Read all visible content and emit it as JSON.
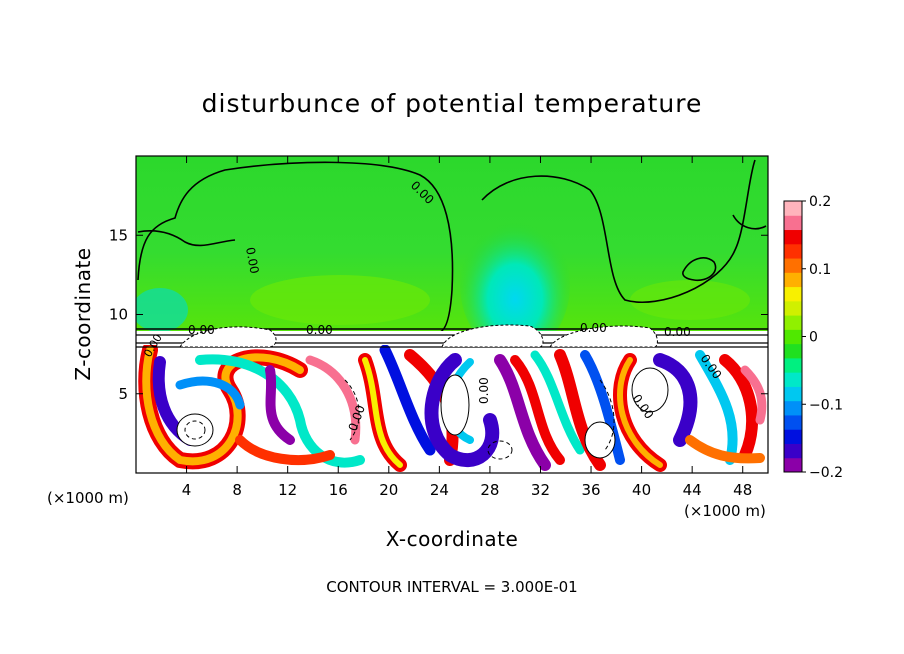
{
  "chart_data": {
    "type": "heatmap",
    "title": "disturbunce of potential temperature",
    "xlabel": "X-coordinate",
    "ylabel": "Z-coordinate",
    "x_unit_left": "(×1000 m)",
    "x_unit_right": "(×1000 m)",
    "xlim": [
      0,
      50
    ],
    "ylim": [
      0,
      20
    ],
    "x_ticks": [
      4,
      8,
      12,
      16,
      20,
      24,
      28,
      32,
      36,
      40,
      44,
      48
    ],
    "y_ticks": [
      5,
      10,
      15
    ],
    "x_tick_labels": [
      "4",
      "8",
      "12",
      "16",
      "20",
      "24",
      "28",
      "32",
      "36",
      "40",
      "44",
      "48"
    ],
    "y_tick_labels": [
      "5",
      "10",
      "15"
    ],
    "colorbar": {
      "range": [
        -0.2,
        0.2
      ],
      "tick_labels": [
        "0.2",
        "0.1",
        "0",
        "−0.1",
        "−0.2"
      ],
      "tick_values": [
        0.2,
        0.1,
        0,
        -0.1,
        -0.2
      ],
      "colors": [
        "#8b00a8",
        "#3a00c8",
        "#0010e0",
        "#0050f0",
        "#0090f8",
        "#00c8f0",
        "#00e8c8",
        "#00f080",
        "#20e020",
        "#50e800",
        "#90f000",
        "#d0f000",
        "#f8f000",
        "#ffb000",
        "#ff7000",
        "#ff3000",
        "#f00000",
        "#f87090",
        "#ffb4bc"
      ]
    },
    "contour_labels": [
      "0.00",
      "0.00",
      "0.00",
      "0.00",
      "0.00",
      "0.00",
      "0.00",
      "0.00",
      "0.00",
      "0.00",
      "0.00"
    ],
    "footer": "CONTOUR INTERVAL = 3.000E-01",
    "grid": false
  }
}
